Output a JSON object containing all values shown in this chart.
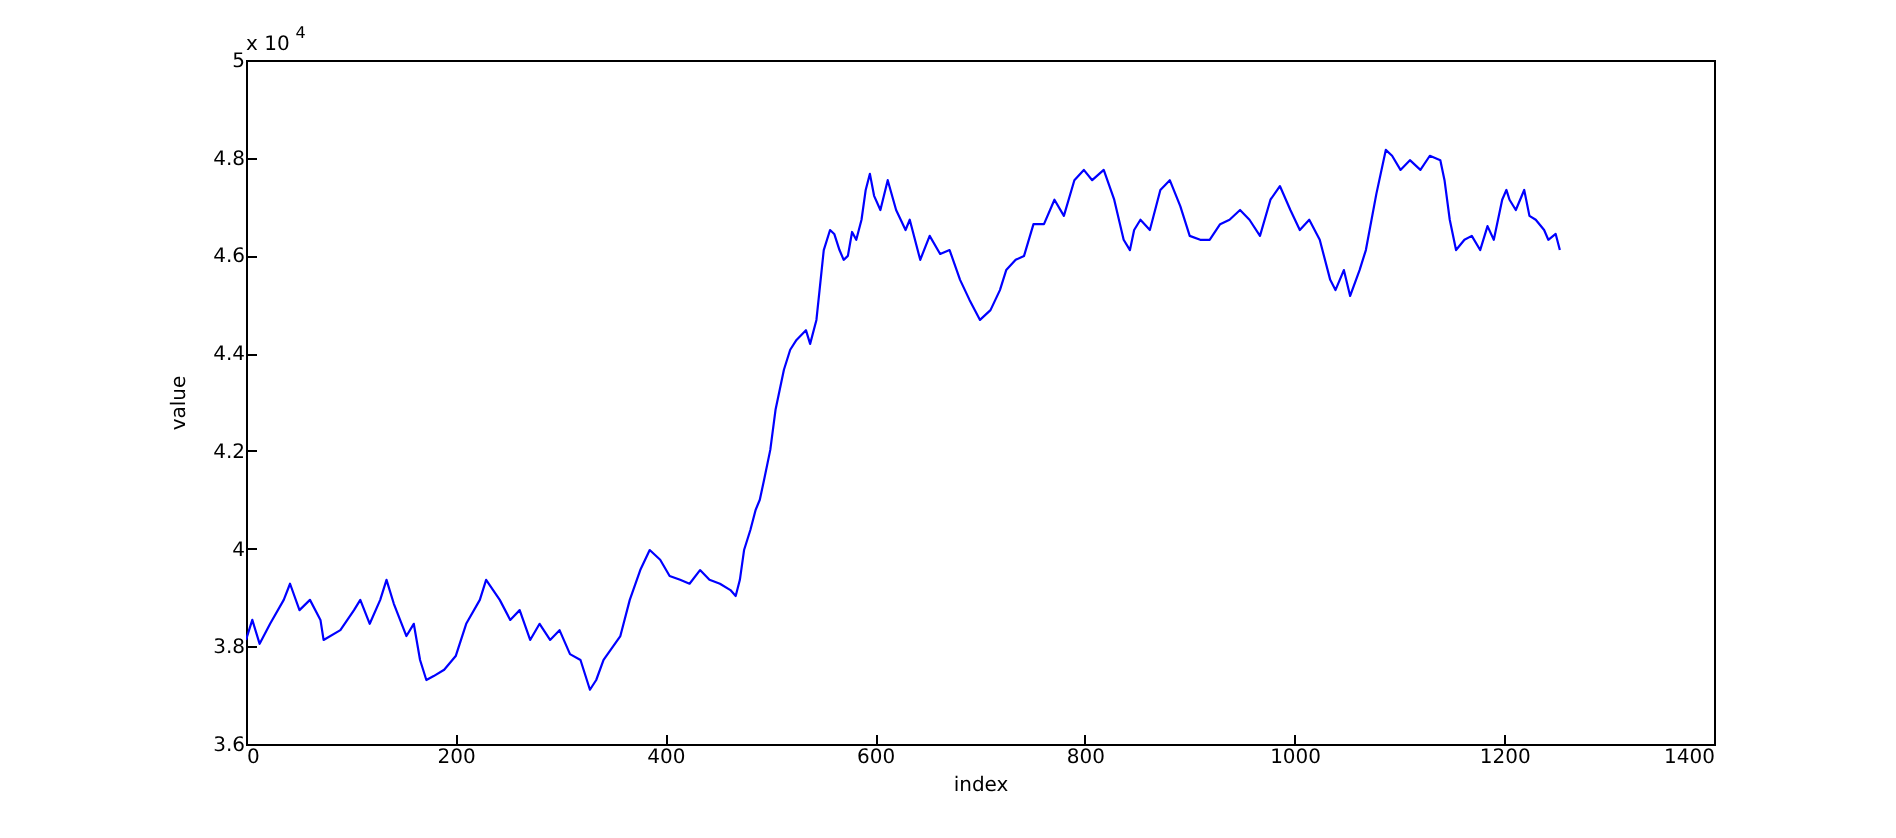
{
  "chart_data": {
    "type": "line",
    "xlabel": "index",
    "ylabel": "value",
    "annotations": [
      "x 10$^{4}$"
    ],
    "x": [
      0,
      6,
      13,
      23,
      36,
      42,
      51,
      61,
      71,
      74,
      90,
      103,
      109,
      118,
      128,
      134,
      141,
      153,
      160,
      166,
      172,
      179,
      189,
      200,
      210,
      223,
      229,
      242,
      252,
      261,
      271,
      280,
      290,
      299,
      309,
      319,
      328,
      334,
      341,
      357,
      366,
      376,
      385,
      395,
      404,
      414,
      423,
      433,
      442,
      452,
      462,
      467,
      471,
      475,
      481,
      486,
      490,
      494,
      500,
      505,
      509,
      513,
      519,
      525,
      534,
      538,
      544,
      547,
      551,
      557,
      561,
      566,
      570,
      574,
      578,
      582,
      587,
      591,
      595,
      599,
      605,
      612,
      620,
      629,
      633,
      643,
      652,
      662,
      671,
      681,
      690,
      700,
      710,
      719,
      725,
      734,
      742,
      751,
      761,
      771,
      780,
      790,
      799,
      807,
      818,
      828,
      837,
      843,
      847,
      853,
      862,
      872,
      881,
      891,
      900,
      910,
      919,
      929,
      938,
      948,
      957,
      967,
      977,
      986,
      996,
      1005,
      1014,
      1024,
      1034,
      1039,
      1047,
      1053,
      1062,
      1068,
      1078,
      1087,
      1093,
      1101,
      1110,
      1120,
      1129,
      1139,
      1143,
      1148,
      1154,
      1162,
      1169,
      1177,
      1184,
      1190,
      1198,
      1202,
      1205,
      1211,
      1219,
      1224,
      1230,
      1238,
      1242,
      1249,
      1253
    ],
    "series": [
      {
        "color": "#0000ff",
        "values": [
          3.813,
          3.854,
          3.805,
          3.846,
          3.895,
          3.928,
          3.874,
          3.895,
          3.854,
          3.813,
          3.833,
          3.874,
          3.895,
          3.846,
          3.895,
          3.936,
          3.887,
          3.821,
          3.846,
          3.772,
          3.731,
          3.739,
          3.752,
          3.78,
          3.846,
          3.895,
          3.936,
          3.895,
          3.854,
          3.874,
          3.813,
          3.846,
          3.813,
          3.833,
          3.784,
          3.772,
          3.711,
          3.731,
          3.772,
          3.821,
          3.895,
          3.956,
          3.997,
          3.977,
          3.944,
          3.936,
          3.928,
          3.956,
          3.936,
          3.928,
          3.915,
          3.903,
          3.936,
          3.997,
          4.038,
          4.079,
          4.1,
          4.14,
          4.202,
          4.284,
          4.325,
          4.366,
          4.407,
          4.427,
          4.447,
          4.419,
          4.468,
          4.529,
          4.611,
          4.652,
          4.644,
          4.611,
          4.591,
          4.599,
          4.648,
          4.632,
          4.673,
          4.734,
          4.767,
          4.722,
          4.693,
          4.754,
          4.693,
          4.652,
          4.673,
          4.591,
          4.64,
          4.603,
          4.611,
          4.55,
          4.509,
          4.468,
          4.488,
          4.529,
          4.57,
          4.591,
          4.599,
          4.664,
          4.664,
          4.714,
          4.681,
          4.754,
          4.775,
          4.754,
          4.775,
          4.714,
          4.632,
          4.611,
          4.652,
          4.673,
          4.652,
          4.734,
          4.754,
          4.701,
          4.64,
          4.632,
          4.632,
          4.664,
          4.673,
          4.693,
          4.673,
          4.64,
          4.714,
          4.742,
          4.693,
          4.652,
          4.673,
          4.632,
          4.55,
          4.529,
          4.57,
          4.517,
          4.57,
          4.611,
          4.726,
          4.816,
          4.804,
          4.775,
          4.795,
          4.775,
          4.804,
          4.795,
          4.754,
          4.673,
          4.611,
          4.632,
          4.64,
          4.611,
          4.66,
          4.632,
          4.714,
          4.734,
          4.714,
          4.693,
          4.734,
          4.681,
          4.673,
          4.652,
          4.632,
          4.644,
          4.611
        ]
      }
    ],
    "xlim": [
      0,
      1400
    ],
    "xticks": [
      0,
      200,
      400,
      600,
      800,
      1000,
      1200,
      1400
    ],
    "ylim": [
      3.6,
      5
    ],
    "yticks": [
      3.6,
      3.8,
      4,
      4.2,
      4.4,
      4.6,
      4.8,
      5
    ],
    "line_style": "solid"
  }
}
